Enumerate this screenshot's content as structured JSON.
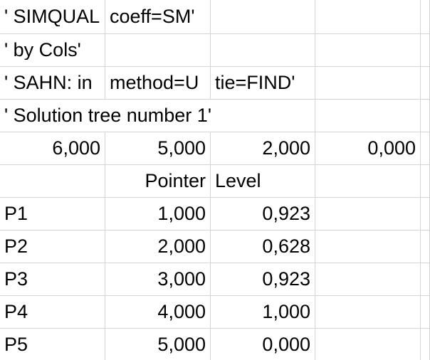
{
  "rows": [
    [
      "' SIMQUAL",
      "coeff=SM'",
      "",
      "",
      ""
    ],
    [
      "' by Cols'",
      "",
      "",
      "",
      ""
    ],
    [
      "' SAHN: in",
      "method=U",
      "tie=FIND'",
      "",
      ""
    ],
    [
      "' Solution tree number 1'",
      "",
      "",
      "",
      ""
    ],
    [
      "6,000",
      "5,000",
      "2,000",
      "0,000",
      ""
    ],
    [
      "",
      "Pointer",
      "Level",
      "",
      ""
    ],
    [
      "P1",
      "1,000",
      "0,923",
      "",
      ""
    ],
    [
      "P2",
      "2,000",
      "0,628",
      "",
      ""
    ],
    [
      "P3",
      "3,000",
      "0,923",
      "",
      ""
    ],
    [
      "P4",
      "4,000",
      "1,000",
      "",
      ""
    ],
    [
      "P5",
      "5,000",
      "0,000",
      "",
      ""
    ]
  ]
}
